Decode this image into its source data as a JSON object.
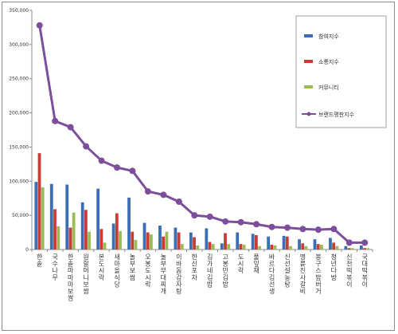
{
  "chart_data": {
    "type": "bar",
    "title": "",
    "xlabel": "",
    "ylabel": "",
    "ylim": [
      0,
      350000
    ],
    "yticks": [
      0,
      50000,
      100000,
      150000,
      200000,
      250000,
      300000,
      350000
    ],
    "ytick_labels": [
      "0",
      "50,000",
      "100,000",
      "150,000",
      "200,000",
      "250,000",
      "300,000",
      "350,000"
    ],
    "grid": false,
    "legend_position": "top-right",
    "categories": [
      "한솥",
      "국수나무",
      "한솥마마마보쌈",
      "원할머니보쌈",
      "본도시락",
      "새마을식당",
      "놀부보쌈",
      "오봉도시락",
      "놀부부대찌개",
      "이바돔감자탕",
      "한신포차",
      "김가네김밥",
      "고봉민김밥",
      "도시락",
      "풀잎채",
      "바르다김선생",
      "신선설농탕",
      "명륜진사갈비",
      "봉구스밥버거",
      "청년다방",
      "신전떡볶이",
      "국대떡볶이"
    ],
    "series": [
      {
        "name": "참여지수",
        "type": "bar",
        "color": "#3a6fb5",
        "values": [
          99000,
          96000,
          95000,
          69000,
          89000,
          38000,
          76000,
          39000,
          35000,
          32000,
          25000,
          31000,
          9000,
          25000,
          23000,
          19000,
          20000,
          15000,
          15000,
          17000,
          5000,
          6000
        ]
      },
      {
        "name": "소통지수",
        "type": "bar",
        "color": "#c83c36",
        "values": [
          141000,
          59000,
          32000,
          58000,
          30000,
          53000,
          26000,
          25000,
          19000,
          25000,
          18000,
          11000,
          24000,
          8000,
          21000,
          7000,
          19000,
          9000,
          8000,
          10000,
          2000,
          2000
        ]
      },
      {
        "name": "커뮤니티",
        "type": "bar",
        "color": "#9bbb59",
        "values": [
          91000,
          34000,
          54000,
          26000,
          10000,
          27000,
          14000,
          22000,
          26000,
          8000,
          6000,
          8000,
          8000,
          7000,
          5000,
          6000,
          5000,
          5000,
          7000,
          5000,
          2000,
          2000
        ]
      },
      {
        "name": "브랜드평판지수",
        "type": "line",
        "color": "#7c4e9c",
        "values": [
          328000,
          188000,
          179000,
          151000,
          130000,
          120000,
          115000,
          85000,
          80000,
          70000,
          50000,
          48000,
          41000,
          40000,
          37000,
          33000,
          32000,
          30000,
          29000,
          30000,
          10000,
          10000
        ]
      }
    ]
  }
}
